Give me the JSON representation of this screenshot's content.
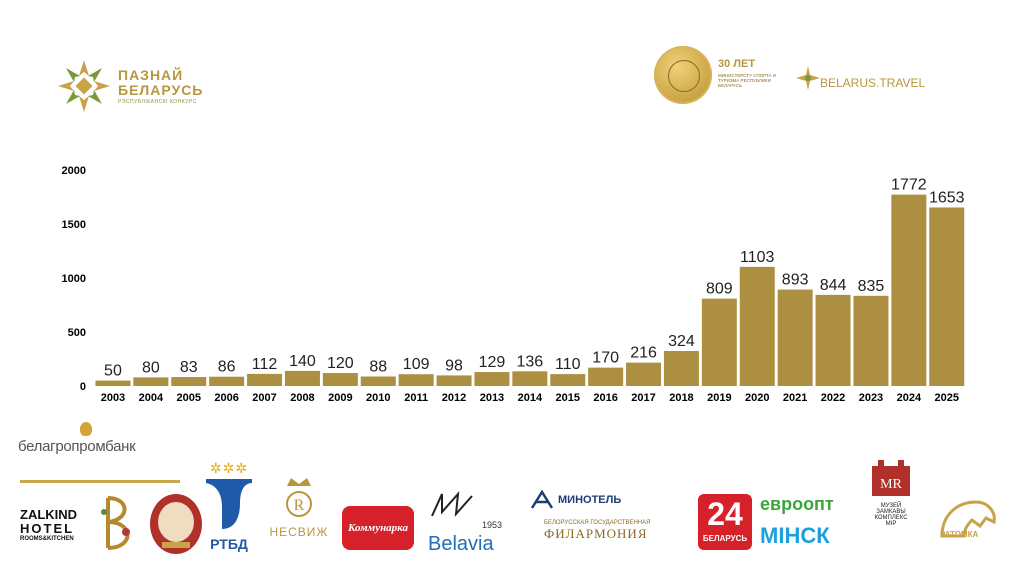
{
  "header": {
    "brand_name_line1": "ПАЗНАЙ",
    "brand_name_line2": "БЕЛАРУСЬ",
    "brand_sub": "РЭСПУБЛІКАНСКІ КОНКУРС",
    "anniversary_years": "30 ЛЕТ",
    "anniversary_ministry": "МИНИСТЕРСТУ СПОРТА И ТУРИЗМА РЕСПУБЛИКИ БЕЛАРУСЬ",
    "travel_brand": "BELARUS.TRAVEL"
  },
  "colors": {
    "bar": "#ad8f41",
    "brand_gold": "#b7973e",
    "brand_green": "#7a9a3a"
  },
  "chart_data": {
    "type": "bar",
    "categories": [
      "2003",
      "2004",
      "2005",
      "2006",
      "2007",
      "2008",
      "2009",
      "2010",
      "2011",
      "2012",
      "2013",
      "2014",
      "2015",
      "2016",
      "2017",
      "2018",
      "2019",
      "2020",
      "2021",
      "2022",
      "2023",
      "2024",
      "2025"
    ],
    "values": [
      50,
      80,
      83,
      86,
      112,
      140,
      120,
      88,
      109,
      98,
      129,
      136,
      110,
      170,
      216,
      324,
      809,
      1103,
      893,
      844,
      835,
      1772,
      1653
    ],
    "yticks": [
      0,
      500,
      1000,
      1500,
      2000
    ],
    "ylim": [
      0,
      2000
    ],
    "title": "",
    "xlabel": "",
    "ylabel": "",
    "grid": false,
    "data_labels": true
  },
  "partners": {
    "belagroprombank": "белагропромбанк",
    "zalkind_line1": "ZALKIND",
    "zalkind_line2": "HOTEL",
    "zalkind_line3": "ROOMS&KITCHEN",
    "rtbd": "РТБД",
    "nesvizh": "НЕСВИЖ",
    "kommunarka": "Коммунарка",
    "belavia_year": "1953",
    "belavia": "Belavia",
    "minotel": "МИНОТЕЛЬ",
    "filarmonia_line1": "БЕЛОРУССКАЯ ГОСУДАРСТВЕННАЯ",
    "filarmonia_line2": "ФИЛАРМОНИЯ",
    "tv24": "24",
    "tv24_sub": "БЕЛАРУСЬ",
    "evroopt": "евроопт",
    "minsk": "МIНСК",
    "mir_line1": "МУЗЕЙ",
    "mir_line2": "ЗАМКАВЫ",
    "mir_line3": "КОМПЛЕКС",
    "mir_line4": "МІР",
    "ratomka": "РАТОМКА"
  }
}
